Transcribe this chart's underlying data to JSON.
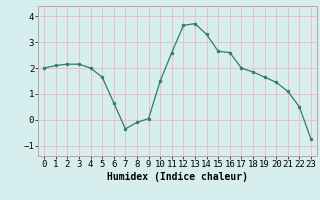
{
  "x": [
    0,
    1,
    2,
    3,
    4,
    5,
    6,
    7,
    8,
    9,
    10,
    11,
    12,
    13,
    14,
    15,
    16,
    17,
    18,
    19,
    20,
    21,
    22,
    23
  ],
  "y": [
    2.0,
    2.1,
    2.15,
    2.15,
    2.0,
    1.65,
    0.65,
    -0.35,
    -0.1,
    0.05,
    1.5,
    2.6,
    3.65,
    3.72,
    3.3,
    2.65,
    2.6,
    2.0,
    1.85,
    1.65,
    1.45,
    1.1,
    0.5,
    -0.75
  ],
  "xlabel": "Humidex (Indice chaleur)",
  "xlim": [
    -0.5,
    23.5
  ],
  "ylim": [
    -1.4,
    4.4
  ],
  "yticks": [
    -1,
    0,
    1,
    2,
    3,
    4
  ],
  "xticks": [
    0,
    1,
    2,
    3,
    4,
    5,
    6,
    7,
    8,
    9,
    10,
    11,
    12,
    13,
    14,
    15,
    16,
    17,
    18,
    19,
    20,
    21,
    22,
    23
  ],
  "line_color": "#2e7d6e",
  "marker_color": "#2e7d6e",
  "axes_face_color": "#d6eeee",
  "fig_face_color": "#d6eeee",
  "grid_color": "#f0b8b8",
  "spine_color": "#c8a0a0",
  "xlabel_fontsize": 7,
  "tick_fontsize": 6.5
}
